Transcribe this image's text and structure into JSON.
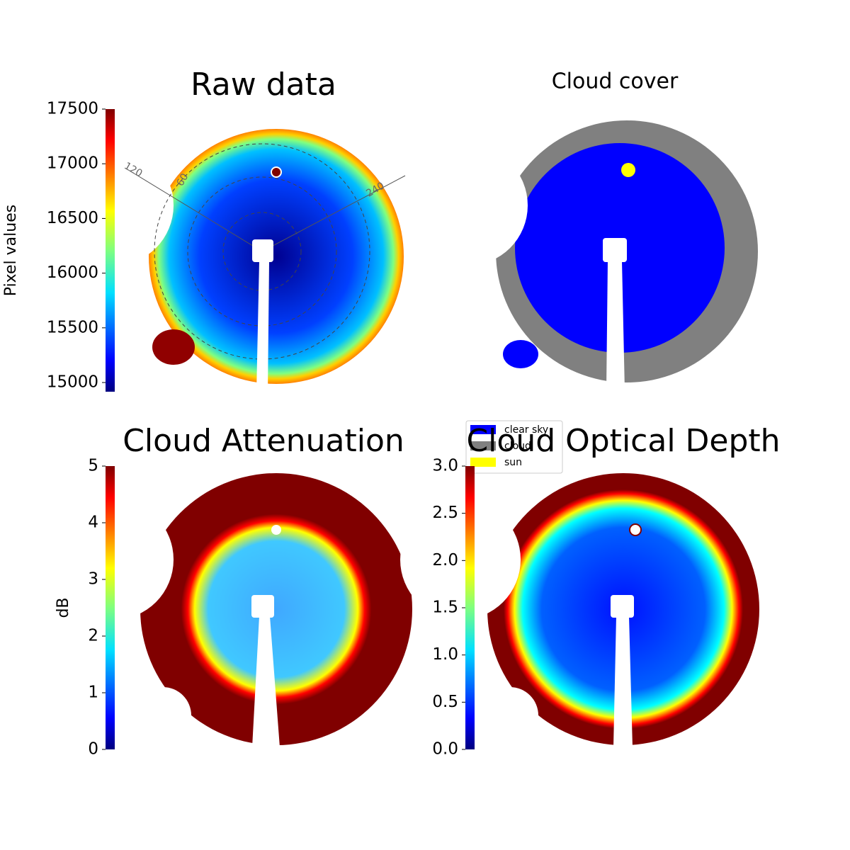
{
  "chart_data": [
    {
      "type": "image",
      "title": "Raw data",
      "colorbar": {
        "label": "Pixel values",
        "ylim": [
          14916,
          17500
        ],
        "yticks": [
          15000,
          15500,
          16000,
          16500,
          17000,
          17500
        ]
      },
      "annotations": [
        "120",
        "60",
        "240"
      ]
    },
    {
      "type": "image",
      "title": "Cloud cover",
      "legend": [
        {
          "name": "clear sky",
          "color": "#0000ff"
        },
        {
          "name": "cloud",
          "color": "#808080"
        },
        {
          "name": "sun",
          "color": "#ffff00"
        }
      ]
    },
    {
      "type": "image",
      "title": "Cloud Attenuation",
      "colorbar": {
        "label": "dB",
        "ylim": [
          0,
          5
        ],
        "yticks": [
          0,
          1,
          2,
          3,
          4,
          5
        ]
      }
    },
    {
      "type": "image",
      "title": "Cloud Optical Depth",
      "colorbar": {
        "ylim": [
          0,
          3
        ],
        "yticks": [
          {
            "value": 0,
            "label": "0.0"
          },
          0.5,
          {
            "value": 1,
            "label": "1.0"
          },
          1.5,
          {
            "value": 2,
            "label": "2.0"
          },
          2.5,
          {
            "value": 3,
            "label": "3.0"
          }
        ]
      }
    }
  ]
}
